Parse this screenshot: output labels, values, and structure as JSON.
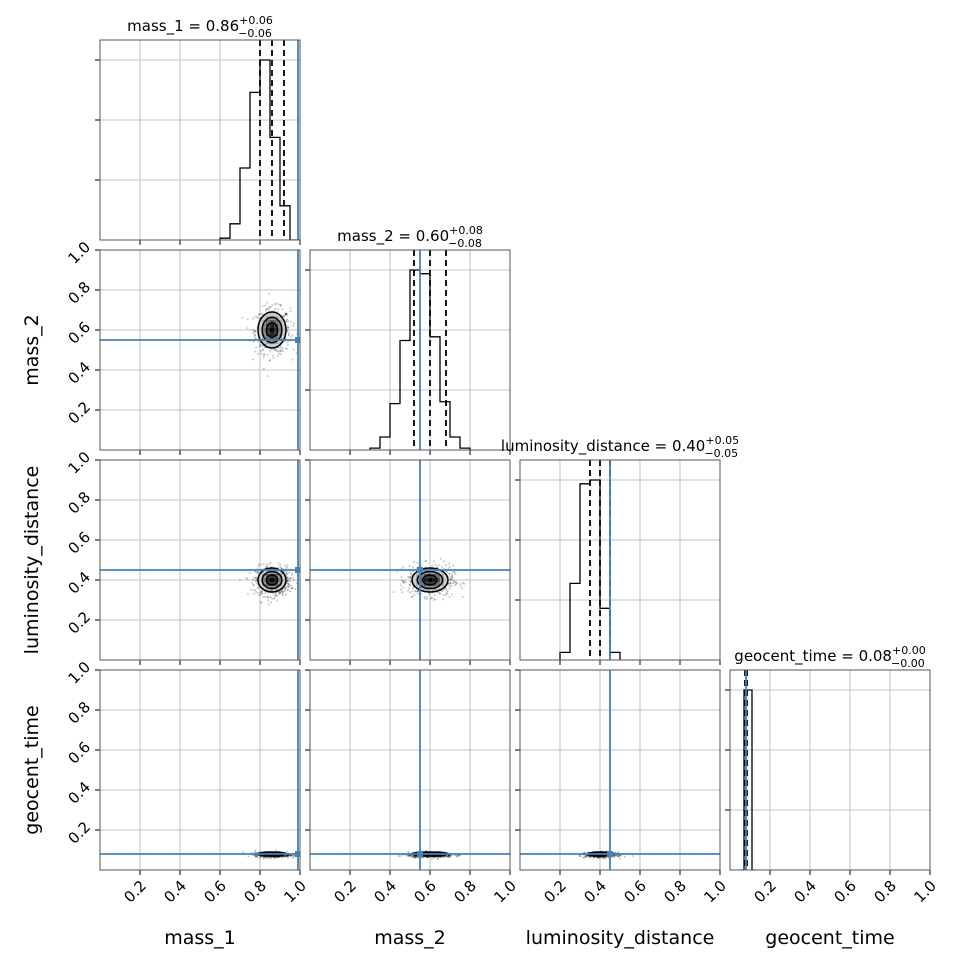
{
  "chart_data": {
    "type": "corner",
    "parameters": [
      "mass_1",
      "mass_2",
      "luminosity_distance",
      "geocent_time"
    ],
    "titles": [
      {
        "param": "mass_1",
        "label": "mass_1 = ",
        "median": "0.86",
        "plus": "+0.06",
        "minus": "−0.06"
      },
      {
        "param": "mass_2",
        "label": "mass_2 = ",
        "median": "0.60",
        "plus": "+0.08",
        "minus": "−0.08"
      },
      {
        "param": "luminosity_distance",
        "label": "luminosity_distance = ",
        "median": "0.40",
        "plus": "+0.05",
        "minus": "−0.05"
      },
      {
        "param": "geocent_time",
        "label": "geocent_time = ",
        "median": "0.08",
        "plus": "+0.00",
        "minus": "−0.00"
      }
    ],
    "axis_range": [
      0,
      1
    ],
    "tick_values": [
      0.2,
      0.4,
      0.6,
      0.8,
      1.0
    ],
    "tick_labels": [
      "0.2",
      "0.4",
      "0.6",
      "0.8",
      "1.0"
    ],
    "truths": [
      0.99,
      0.55,
      0.45,
      0.08
    ],
    "median": [
      0.86,
      0.6,
      0.4,
      0.08
    ],
    "quantiles": [
      [
        0.8,
        0.92
      ],
      [
        0.52,
        0.68
      ],
      [
        0.35,
        0.45
      ],
      [
        0.075,
        0.085
      ]
    ],
    "sigma": [
      0.035,
      0.045,
      0.03,
      0.005
    ],
    "histograms": [
      {
        "param": "mass_1",
        "bin_width": 0.05,
        "bin_start": 0.6,
        "counts": [
          0.01,
          0.09,
          0.4,
          0.82,
          1.0,
          0.57,
          0.19,
          0.0
        ]
      },
      {
        "param": "mass_2",
        "bin_width": 0.05,
        "bin_start": 0.3,
        "counts": [
          0.01,
          0.07,
          0.25,
          0.59,
          0.97,
          0.95,
          0.61,
          0.26,
          0.07,
          0.01
        ]
      },
      {
        "param": "luminosity_distance",
        "bin_width": 0.05,
        "bin_start": 0.2,
        "counts": [
          0.04,
          0.4,
          0.92,
          0.94,
          0.27,
          0.04
        ]
      },
      {
        "param": "geocent_time",
        "bin_width": 0.02,
        "bin_start": 0.05,
        "counts": [
          0.0,
          0.8,
          0.8,
          0.0
        ]
      }
    ],
    "grid": true,
    "colors": {
      "truth": "#4682b4",
      "hist": "#000000",
      "grid": "#b0b0b0",
      "density": "#000000"
    }
  }
}
